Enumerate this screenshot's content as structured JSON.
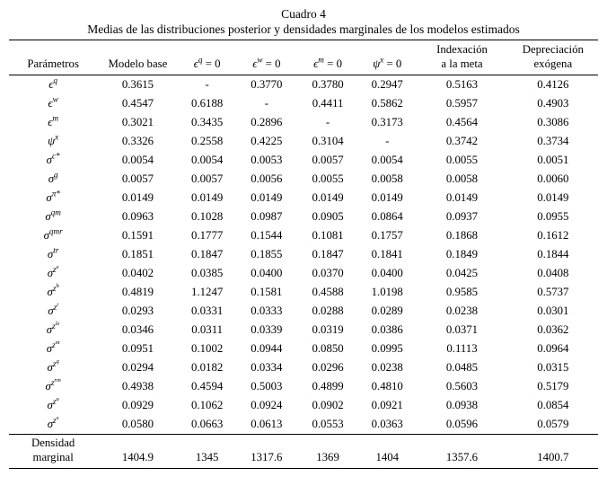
{
  "page": {
    "title": "Cuadro 4",
    "subtitle": "Medias de las distribuciones posterior y densidades marginales de los modelos estimados"
  },
  "table": {
    "header": {
      "param_col": "Parámetros",
      "cols": [
        {
          "lines": [
            "Modelo base"
          ]
        },
        {
          "math": {
            "base": "ϵ",
            "sup": "q",
            "rest": " = 0"
          }
        },
        {
          "math": {
            "base": "ϵ",
            "sup": "w",
            "rest": " = 0"
          }
        },
        {
          "math": {
            "base": "ϵ",
            "sup": "m",
            "rest": " = 0"
          }
        },
        {
          "math": {
            "base": "ψ",
            "sup": "x",
            "rest": " = 0"
          }
        },
        {
          "lines": [
            "Indexación",
            "a la meta"
          ]
        },
        {
          "lines": [
            "Depreciación",
            "exógena"
          ]
        }
      ]
    },
    "rows": [
      {
        "param": {
          "base": "ϵ",
          "sup": "q"
        },
        "values": [
          "0.3615",
          "-",
          "0.3770",
          "0.3780",
          "0.2947",
          "0.5163",
          "0.4126"
        ]
      },
      {
        "param": {
          "base": "ϵ",
          "sup": "w"
        },
        "values": [
          "0.4547",
          "0.6188",
          "-",
          "0.4411",
          "0.5862",
          "0.5957",
          "0.4903"
        ]
      },
      {
        "param": {
          "base": "ϵ",
          "sup": "m"
        },
        "values": [
          "0.3021",
          "0.3435",
          "0.2896",
          "-",
          "0.3173",
          "0.4564",
          "0.3086"
        ]
      },
      {
        "param": {
          "base": "ψ",
          "sup": "x"
        },
        "values": [
          "0.3326",
          "0.2558",
          "0.4225",
          "0.3104",
          "-",
          "0.3742",
          "0.3734"
        ]
      },
      {
        "param": {
          "base": "σ",
          "sup": "c*"
        },
        "values": [
          "0.0054",
          "0.0054",
          "0.0053",
          "0.0057",
          "0.0054",
          "0.0055",
          "0.0051"
        ]
      },
      {
        "param": {
          "base": "σ",
          "sup": "g"
        },
        "values": [
          "0.0057",
          "0.0057",
          "0.0056",
          "0.0055",
          "0.0058",
          "0.0058",
          "0.0060"
        ]
      },
      {
        "param": {
          "base": "σ",
          "sup": "π*"
        },
        "values": [
          "0.0149",
          "0.0149",
          "0.0149",
          "0.0149",
          "0.0149",
          "0.0149",
          "0.0149"
        ]
      },
      {
        "param": {
          "base": "σ",
          "sup": "qm"
        },
        "values": [
          "0.0963",
          "0.1028",
          "0.0987",
          "0.0905",
          "0.0864",
          "0.0937",
          "0.0955"
        ]
      },
      {
        "param": {
          "base": "σ",
          "sup": "qmr"
        },
        "values": [
          "0.1591",
          "0.1777",
          "0.1544",
          "0.1081",
          "0.1757",
          "0.1868",
          "0.1612"
        ]
      },
      {
        "param": {
          "base": "σ",
          "sup": "tr"
        },
        "values": [
          "0.1851",
          "0.1847",
          "0.1855",
          "0.1847",
          "0.1841",
          "0.1849",
          "0.1844"
        ]
      },
      {
        "param": {
          "base": "σ",
          "sup": "z^e"
        },
        "values": [
          "0.0402",
          "0.0385",
          "0.0400",
          "0.0370",
          "0.0400",
          "0.0425",
          "0.0408"
        ]
      },
      {
        "param": {
          "base": "σ",
          "sup": "z^h"
        },
        "values": [
          "0.4819",
          "1.1247",
          "0.1581",
          "0.4588",
          "1.0198",
          "0.9585",
          "0.5737"
        ]
      },
      {
        "param": {
          "base": "σ",
          "sup": "z^i"
        },
        "values": [
          "0.0293",
          "0.0331",
          "0.0333",
          "0.0288",
          "0.0289",
          "0.0238",
          "0.0301"
        ]
      },
      {
        "param": {
          "base": "σ",
          "sup": "z^le"
        },
        "values": [
          "0.0346",
          "0.0311",
          "0.0339",
          "0.0319",
          "0.0386",
          "0.0371",
          "0.0362"
        ]
      },
      {
        "param": {
          "base": "σ",
          "sup": "z^m"
        },
        "values": [
          "0.0951",
          "0.1002",
          "0.0944",
          "0.0850",
          "0.0995",
          "0.1113",
          "0.0964"
        ]
      },
      {
        "param": {
          "base": "σ",
          "sup": "z^q"
        },
        "values": [
          "0.0294",
          "0.0182",
          "0.0334",
          "0.0296",
          "0.0238",
          "0.0485",
          "0.0315"
        ]
      },
      {
        "param": {
          "base": "σ",
          "sup": "z^rm"
        },
        "values": [
          "0.4938",
          "0.4594",
          "0.5003",
          "0.4899",
          "0.4810",
          "0.5603",
          "0.5179"
        ]
      },
      {
        "param": {
          "base": "σ",
          "sup": "z^u"
        },
        "values": [
          "0.0929",
          "0.1062",
          "0.0924",
          "0.0902",
          "0.0921",
          "0.0938",
          "0.0854"
        ]
      },
      {
        "param": {
          "base": "σ",
          "sup": "z^x"
        },
        "values": [
          "0.0580",
          "0.0663",
          "0.0613",
          "0.0553",
          "0.0363",
          "0.0596",
          "0.0579"
        ]
      }
    ],
    "footer": {
      "label_lines": [
        "Densidad",
        "marginal"
      ],
      "values": [
        "1404.9",
        "1345",
        "1317.6",
        "1369",
        "1404",
        "1357.6",
        "1400.7"
      ]
    }
  }
}
